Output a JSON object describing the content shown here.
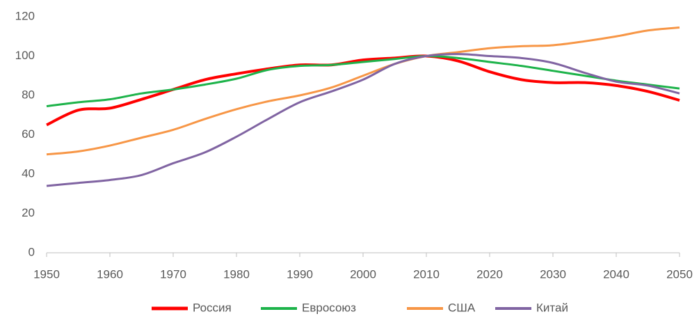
{
  "chart_data": {
    "type": "line",
    "x": [
      1950,
      1955,
      1960,
      1965,
      1970,
      1975,
      1980,
      1985,
      1990,
      1995,
      2000,
      2005,
      2010,
      2015,
      2020,
      2025,
      2030,
      2035,
      2040,
      2045,
      2050
    ],
    "series": [
      {
        "name": "Россия",
        "color": "#ff0000",
        "values": [
          65,
          72.5,
          73.5,
          78,
          83,
          88,
          91,
          93.5,
          95.5,
          95.5,
          98,
          99,
          100,
          97.5,
          92,
          88,
          86.5,
          86.5,
          85,
          82,
          77.5
        ]
      },
      {
        "name": "Евросоюз",
        "color": "#1db34a",
        "values": [
          74.5,
          76.5,
          78,
          81,
          83,
          85.5,
          88.5,
          93,
          95,
          95.5,
          97,
          98.5,
          100,
          99,
          97,
          95,
          92.5,
          90,
          87.5,
          85.5,
          83.5
        ]
      },
      {
        "name": "США",
        "color": "#f79646",
        "values": [
          50,
          51.5,
          54.5,
          58.5,
          62.5,
          68,
          73,
          77,
          80,
          84,
          90,
          96,
          100,
          102,
          104,
          105,
          105.5,
          107.5,
          110,
          113,
          114.5
        ]
      },
      {
        "name": "Китай",
        "color": "#8064a2",
        "values": [
          34,
          35.5,
          37,
          39.5,
          45.5,
          51,
          59,
          68,
          76.5,
          82,
          88,
          96,
          100,
          101,
          100,
          99,
          96.5,
          91.5,
          87,
          85,
          81
        ]
      }
    ],
    "xlim": [
      1950,
      2050
    ],
    "xticks": [
      1950,
      1960,
      1970,
      1980,
      1990,
      2000,
      2010,
      2020,
      2030,
      2040,
      2050
    ],
    "ylim": [
      0,
      120
    ],
    "yticks": [
      0,
      20,
      40,
      60,
      80,
      100,
      120
    ],
    "grid": false,
    "legend": "bottom"
  }
}
